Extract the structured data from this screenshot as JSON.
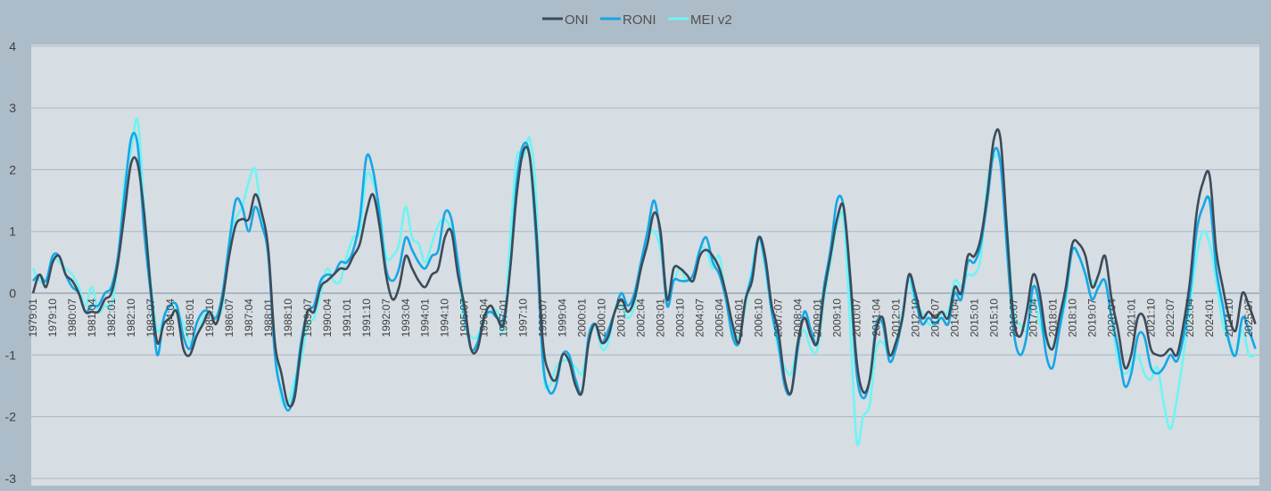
{
  "chart_data": {
    "type": "line",
    "title": "",
    "xlabel": "",
    "ylabel": "",
    "ylim": [
      -3,
      4
    ],
    "yticks": [
      -3,
      -2,
      -1,
      0,
      1,
      2,
      3,
      4
    ],
    "grid": true,
    "legend_position": "top-center",
    "x_start": "1979:01",
    "x_step_months": 3,
    "x_end": "2025:10",
    "xticks": [
      "1979:01",
      "1979:10",
      "1980:07",
      "1981:04",
      "1982:01",
      "1982:10",
      "1983:07",
      "1984:04",
      "1985:01",
      "1985:10",
      "1986:07",
      "1987:04",
      "1988:01",
      "1988:10",
      "1989:07",
      "1990:04",
      "1991:01",
      "1991:10",
      "1992:07",
      "1993:04",
      "1994:01",
      "1994:10",
      "1995:07",
      "1996:04",
      "1997:01",
      "1997:10",
      "1998:07",
      "1999:04",
      "2000:01",
      "2000:10",
      "2001:07",
      "2002:04",
      "2003:01",
      "2003:10",
      "2004:07",
      "2005:04",
      "2006:01",
      "2006:10",
      "2007:07",
      "2008:04",
      "2009:01",
      "2009:10",
      "2010:07",
      "2011:04",
      "2012:01",
      "2012:10",
      "2013:07",
      "2014:04",
      "2015:01",
      "2015:10",
      "2016:07",
      "2017:04",
      "2018:01",
      "2018:10",
      "2019:07",
      "2020:04",
      "2021:01",
      "2021:10",
      "2022:07",
      "2023:04",
      "2024:01",
      "2024:10",
      "2025:07"
    ],
    "series": [
      {
        "name": "ONI",
        "color": "#3b4b59",
        "values": [
          0.0,
          0.3,
          0.1,
          0.5,
          0.6,
          0.3,
          0.2,
          0.0,
          -0.3,
          -0.3,
          -0.3,
          -0.1,
          0.0,
          0.5,
          1.3,
          2.1,
          2.1,
          1.3,
          0.1,
          -0.8,
          -0.5,
          -0.4,
          -0.3,
          -0.9,
          -1.0,
          -0.7,
          -0.5,
          -0.3,
          -0.5,
          -0.1,
          0.6,
          1.1,
          1.2,
          1.2,
          1.6,
          1.3,
          0.7,
          -0.8,
          -1.3,
          -1.8,
          -1.7,
          -0.9,
          -0.3,
          -0.3,
          0.1,
          0.2,
          0.3,
          0.4,
          0.4,
          0.6,
          0.8,
          1.3,
          1.6,
          1.1,
          0.3,
          -0.1,
          0.1,
          0.6,
          0.4,
          0.2,
          0.1,
          0.3,
          0.4,
          0.9,
          1.0,
          0.3,
          -0.2,
          -0.9,
          -0.9,
          -0.4,
          -0.2,
          -0.4,
          -0.5,
          0.4,
          1.6,
          2.3,
          2.2,
          1.0,
          -0.8,
          -1.3,
          -1.4,
          -1.0,
          -1.1,
          -1.5,
          -1.6,
          -0.8,
          -0.5,
          -0.8,
          -0.7,
          -0.3,
          -0.1,
          -0.3,
          -0.1,
          0.4,
          0.8,
          1.3,
          1.0,
          -0.1,
          0.4,
          0.4,
          0.3,
          0.2,
          0.6,
          0.7,
          0.6,
          0.4,
          0.0,
          -0.5,
          -0.8,
          -0.1,
          0.2,
          0.9,
          0.6,
          -0.2,
          -0.6,
          -1.4,
          -1.6,
          -0.8,
          -0.4,
          -0.7,
          -0.8,
          0.0,
          0.6,
          1.2,
          1.4,
          0.3,
          -1.1,
          -1.6,
          -1.4,
          -0.6,
          -0.4,
          -1.0,
          -0.8,
          -0.4,
          0.3,
          0.0,
          -0.4,
          -0.3,
          -0.4,
          -0.3,
          -0.4,
          0.1,
          0.0,
          0.6,
          0.6,
          0.9,
          1.6,
          2.5,
          2.5,
          1.0,
          -0.4,
          -0.7,
          -0.3,
          0.3,
          0.0,
          -0.7,
          -0.9,
          -0.4,
          0.1,
          0.8,
          0.8,
          0.6,
          0.1,
          0.3,
          0.6,
          -0.1,
          -0.6,
          -1.2,
          -1.0,
          -0.4,
          -0.4,
          -0.9,
          -1.0,
          -1.0,
          -0.9,
          -1.0,
          -0.5,
          0.2,
          1.3,
          1.8,
          1.9,
          0.7,
          0.1,
          -0.4,
          -0.6,
          0.0,
          -0.2,
          -0.5
        ]
      },
      {
        "name": "RONI",
        "color": "#14a7e6",
        "values": [
          0.2,
          0.3,
          0.2,
          0.6,
          0.6,
          0.3,
          0.1,
          0.0,
          -0.3,
          -0.2,
          -0.2,
          0.0,
          0.1,
          0.6,
          1.6,
          2.5,
          2.4,
          1.0,
          0.0,
          -1.0,
          -0.4,
          -0.2,
          -0.2,
          -0.7,
          -0.9,
          -0.5,
          -0.3,
          -0.3,
          -0.4,
          0.0,
          0.8,
          1.5,
          1.4,
          1.0,
          1.4,
          1.1,
          0.6,
          -1.0,
          -1.6,
          -1.9,
          -1.6,
          -0.8,
          -0.3,
          -0.2,
          0.2,
          0.3,
          0.3,
          0.5,
          0.5,
          0.7,
          1.2,
          2.2,
          2.0,
          1.3,
          0.4,
          0.2,
          0.4,
          0.9,
          0.7,
          0.5,
          0.4,
          0.6,
          0.7,
          1.3,
          1.2,
          0.5,
          -0.3,
          -0.9,
          -0.8,
          -0.4,
          -0.3,
          -0.4,
          -0.4,
          0.4,
          1.8,
          2.4,
          2.2,
          0.8,
          -1.1,
          -1.6,
          -1.5,
          -1.0,
          -1.0,
          -1.4,
          -1.6,
          -0.7,
          -0.5,
          -0.8,
          -0.6,
          -0.3,
          0.0,
          -0.2,
          0.0,
          0.5,
          1.0,
          1.5,
          0.9,
          -0.2,
          0.2,
          0.2,
          0.2,
          0.3,
          0.7,
          0.9,
          0.5,
          0.3,
          -0.1,
          -0.7,
          -0.8,
          -0.1,
          0.3,
          0.9,
          0.5,
          -0.3,
          -0.8,
          -1.5,
          -1.6,
          -0.9,
          -0.3,
          -0.6,
          -0.8,
          0.1,
          0.7,
          1.5,
          1.4,
          0.2,
          -1.3,
          -1.7,
          -1.4,
          -0.5,
          -0.5,
          -1.1,
          -0.9,
          -0.4,
          0.3,
          -0.1,
          -0.5,
          -0.4,
          -0.5,
          -0.4,
          -0.5,
          0.0,
          -0.1,
          0.5,
          0.5,
          0.8,
          1.5,
          2.3,
          2.1,
          0.7,
          -0.6,
          -1.0,
          -0.7,
          0.1,
          -0.2,
          -1.0,
          -1.2,
          -0.6,
          0.0,
          0.7,
          0.6,
          0.3,
          -0.1,
          0.1,
          0.2,
          -0.4,
          -0.9,
          -1.5,
          -1.3,
          -0.7,
          -0.7,
          -1.2,
          -1.3,
          -1.2,
          -1.0,
          -1.1,
          -0.7,
          0.0,
          1.0,
          1.4,
          1.5,
          0.4,
          -0.2,
          -0.8,
          -1.0,
          -0.4,
          -0.6,
          -0.9
        ]
      },
      {
        "name": "MEI v2",
        "color": "#6ff4f4",
        "values": [
          0.4,
          0.2,
          0.2,
          0.6,
          0.5,
          0.4,
          0.3,
          0.1,
          -0.2,
          0.1,
          -0.3,
          -0.2,
          -0.2,
          0.5,
          1.8,
          2.3,
          2.8,
          1.4,
          0.2,
          -0.6,
          -0.4,
          -0.2,
          -0.3,
          -0.5,
          -0.8,
          -0.7,
          -0.4,
          -0.3,
          -0.4,
          -0.2,
          0.8,
          1.2,
          1.4,
          1.8,
          2.0,
          1.2,
          0.6,
          -0.8,
          -1.7,
          -1.8,
          -1.4,
          -1.1,
          -0.5,
          -0.4,
          0.0,
          0.4,
          0.2,
          0.2,
          0.6,
          0.9,
          1.0,
          1.9,
          1.8,
          1.4,
          0.6,
          0.6,
          0.8,
          1.4,
          0.9,
          0.8,
          0.5,
          0.8,
          1.1,
          1.2,
          1.0,
          0.4,
          -0.5,
          -0.7,
          -0.7,
          -0.4,
          -0.3,
          -0.3,
          -0.6,
          0.9,
          2.2,
          2.2,
          2.5,
          1.5,
          -1.2,
          -1.5,
          -1.2,
          -1.1,
          -1.1,
          -1.2,
          -1.3,
          -0.8,
          -0.5,
          -0.9,
          -0.8,
          -0.3,
          -0.2,
          -0.4,
          -0.2,
          0.5,
          0.9,
          1.0,
          0.7,
          0.0,
          0.2,
          0.4,
          0.2,
          0.3,
          0.7,
          0.7,
          0.4,
          0.6,
          -0.1,
          -0.6,
          -0.7,
          -0.2,
          0.4,
          0.9,
          0.4,
          -0.3,
          -0.9,
          -1.2,
          -1.3,
          -0.8,
          -0.6,
          -0.9,
          -0.9,
          -0.1,
          0.5,
          1.1,
          1.2,
          -0.5,
          -2.4,
          -2.0,
          -1.8,
          -0.9,
          -0.8,
          -1.0,
          -0.8,
          -0.3,
          0.2,
          -0.2,
          -0.3,
          -0.5,
          -0.5,
          -0.3,
          -0.3,
          0.2,
          0.1,
          0.3,
          0.3,
          0.6,
          1.8,
          2.2,
          2.1,
          1.1,
          -0.3,
          -0.5,
          -0.6,
          -0.1,
          -0.5,
          -0.8,
          -0.9,
          -0.6,
          -0.1,
          0.7,
          0.6,
          0.3,
          0.2,
          0.1,
          0.2,
          -0.4,
          -1.1,
          -1.3,
          -1.2,
          -1.0,
          -1.3,
          -1.4,
          -1.2,
          -1.8,
          -2.2,
          -1.7,
          -1.0,
          -0.2,
          0.6,
          1.0,
          0.8,
          0.2,
          -0.5,
          -0.8,
          -1.0,
          -0.6,
          -1.0,
          -1.0
        ]
      }
    ]
  }
}
